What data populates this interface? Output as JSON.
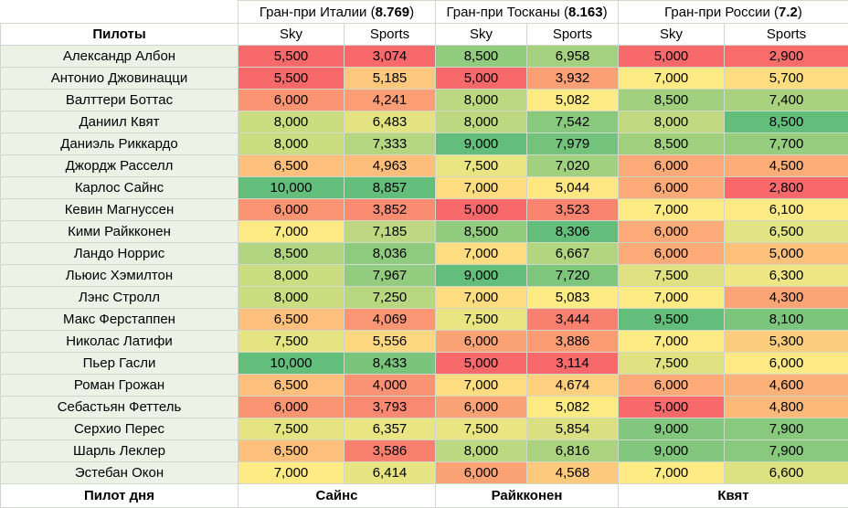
{
  "races": [
    {
      "label": "Гран-при Италии",
      "rating": "8.769"
    },
    {
      "label": "Гран-при Тосканы",
      "rating": "8.163"
    },
    {
      "label": "Гран-при России",
      "rating": "7.2"
    }
  ],
  "columns": {
    "pilots": "Пилоты",
    "sky": "Sky",
    "sports": "Sports"
  },
  "rows": [
    {
      "name": "Александр Албон",
      "values": [
        "5,500",
        "3,074",
        "8,500",
        "6,958",
        "5,000",
        "2,900"
      ]
    },
    {
      "name": "Антонио Джовинацци",
      "values": [
        "5,500",
        "5,185",
        "5,000",
        "3,932",
        "7,000",
        "5,700"
      ]
    },
    {
      "name": "Валттери Боттас",
      "values": [
        "6,000",
        "4,241",
        "8,000",
        "5,082",
        "8,500",
        "7,400"
      ]
    },
    {
      "name": "Даниил Квят",
      "values": [
        "8,000",
        "6,483",
        "8,000",
        "7,542",
        "8,000",
        "8,500"
      ]
    },
    {
      "name": "Даниэль Риккардо",
      "values": [
        "8,000",
        "7,333",
        "9,000",
        "7,979",
        "8,500",
        "7,700"
      ]
    },
    {
      "name": "Джордж Расселл",
      "values": [
        "6,500",
        "4,963",
        "7,500",
        "7,020",
        "6,000",
        "4,500"
      ]
    },
    {
      "name": "Карлос Сайнс",
      "values": [
        "10,000",
        "8,857",
        "7,000",
        "5,044",
        "6,000",
        "2,800"
      ]
    },
    {
      "name": "Кевин Магнуссен",
      "values": [
        "6,000",
        "3,852",
        "5,000",
        "3,523",
        "7,000",
        "6,100"
      ]
    },
    {
      "name": "Кими Райкконен",
      "values": [
        "7,000",
        "7,185",
        "8,500",
        "8,306",
        "6,000",
        "6,500"
      ]
    },
    {
      "name": "Ландо Норрис",
      "values": [
        "8,500",
        "8,036",
        "7,000",
        "6,667",
        "6,000",
        "5,000"
      ]
    },
    {
      "name": "Льюис Хэмилтон",
      "values": [
        "8,000",
        "7,967",
        "9,000",
        "7,720",
        "7,500",
        "6,300"
      ]
    },
    {
      "name": "Лэнс Стролл",
      "values": [
        "8,000",
        "7,250",
        "7,000",
        "5,083",
        "7,000",
        "4,300"
      ]
    },
    {
      "name": "Макс Ферстаппен",
      "values": [
        "6,500",
        "4,069",
        "7,500",
        "3,444",
        "9,500",
        "8,100"
      ]
    },
    {
      "name": "Николас Латифи",
      "values": [
        "7,500",
        "5,556",
        "6,000",
        "3,886",
        "7,000",
        "5,300"
      ]
    },
    {
      "name": "Пьер Гасли",
      "values": [
        "10,000",
        "8,433",
        "5,000",
        "3,114",
        "7,500",
        "6,000"
      ]
    },
    {
      "name": "Роман Грожан",
      "values": [
        "6,500",
        "4,000",
        "7,000",
        "4,674",
        "6,000",
        "4,600"
      ]
    },
    {
      "name": "Себастьян Феттель",
      "values": [
        "6,000",
        "3,793",
        "6,000",
        "5,082",
        "5,000",
        "4,800"
      ]
    },
    {
      "name": "Серхио Перес",
      "values": [
        "7,500",
        "6,357",
        "7,500",
        "5,854",
        "9,000",
        "7,900"
      ]
    },
    {
      "name": "Шарль Леклер",
      "values": [
        "6,500",
        "3,586",
        "8,000",
        "6,816",
        "9,000",
        "7,900"
      ]
    },
    {
      "name": "Эстебан Окон",
      "values": [
        "7,000",
        "6,414",
        "6,000",
        "4,568",
        "7,000",
        "6,600"
      ]
    }
  ],
  "footer": {
    "label": "Пилот дня",
    "winners": [
      "Сайнс",
      "Райкконен",
      "Квят"
    ]
  },
  "color_scale": {
    "low": "#f8696b",
    "mid": "#ffeb84",
    "high": "#63be7b"
  }
}
